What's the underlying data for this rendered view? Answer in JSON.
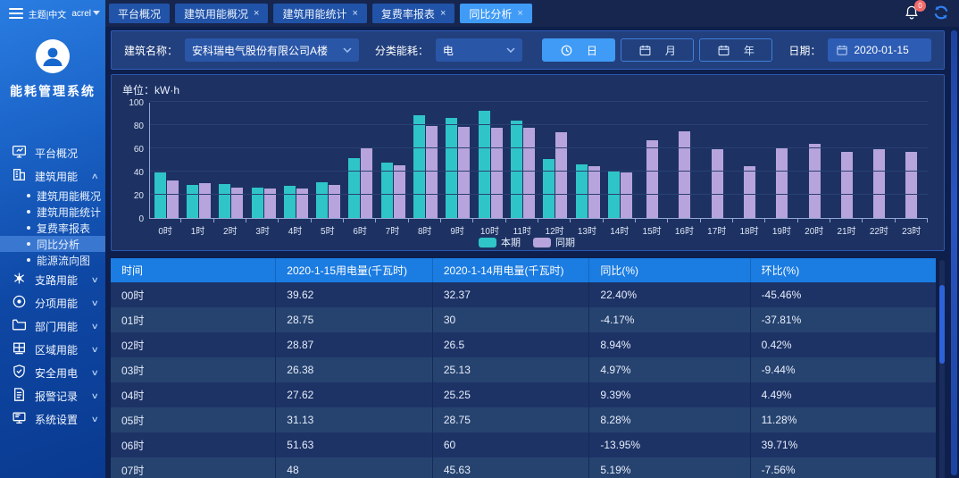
{
  "topbar": {
    "theme_label": "主题|中文",
    "user": "acrel",
    "notification_count": "0",
    "tabs": [
      {
        "label": "平台概况",
        "closable": false,
        "active": false
      },
      {
        "label": "建筑用能概况",
        "closable": true,
        "active": false
      },
      {
        "label": "建筑用能统计",
        "closable": true,
        "active": false
      },
      {
        "label": "复费率报表",
        "closable": true,
        "active": false
      },
      {
        "label": "同比分析",
        "closable": true,
        "active": true
      }
    ]
  },
  "sidebar": {
    "system_title": "能耗管理系统",
    "items": [
      {
        "label": "平台概况",
        "icon": "monitor-icon",
        "collapsible": false
      },
      {
        "label": "建筑用能",
        "icon": "building-icon",
        "collapsible": true,
        "expanded": true,
        "children": [
          {
            "label": "建筑用能概况",
            "active": false
          },
          {
            "label": "建筑用能统计",
            "active": false
          },
          {
            "label": "复费率报表",
            "active": false
          },
          {
            "label": "同比分析",
            "active": true
          },
          {
            "label": "能源流向图",
            "active": false
          }
        ]
      },
      {
        "label": "支路用能",
        "icon": "branch-icon",
        "collapsible": true,
        "expanded": false
      },
      {
        "label": "分项用能",
        "icon": "target-icon",
        "collapsible": true,
        "expanded": false
      },
      {
        "label": "部门用能",
        "icon": "folder-icon",
        "collapsible": true,
        "expanded": false
      },
      {
        "label": "区域用能",
        "icon": "area-icon",
        "collapsible": true,
        "expanded": false
      },
      {
        "label": "安全用电",
        "icon": "shield-icon",
        "collapsible": true,
        "expanded": false
      },
      {
        "label": "报警记录",
        "icon": "alarm-doc-icon",
        "collapsible": true,
        "expanded": false
      },
      {
        "label": "系统设置",
        "icon": "settings-icon",
        "collapsible": true,
        "expanded": false
      }
    ]
  },
  "filters": {
    "building_label": "建筑名称：",
    "building_value": "安科瑞电气股份有限公司A楼",
    "energy_label": "分类能耗：",
    "energy_value": "电",
    "period_buttons": [
      {
        "label": "日",
        "icon": "clock-icon",
        "active": true
      },
      {
        "label": "月",
        "icon": "calendar-icon",
        "active": false
      },
      {
        "label": "年",
        "icon": "calendar-icon",
        "active": false
      }
    ],
    "date_label": "日期：",
    "date_value": "2020-01-15"
  },
  "chart_data": {
    "type": "bar",
    "title": "",
    "unit_label": "单位：kW·h",
    "xlabel": "",
    "ylabel": "kW·h",
    "ylim": [
      0,
      100
    ],
    "yticks": [
      0,
      20,
      40,
      60,
      80,
      100
    ],
    "grid": true,
    "legend_position": "bottom",
    "categories": [
      "0时",
      "1时",
      "2时",
      "3时",
      "4时",
      "5时",
      "6时",
      "7时",
      "8时",
      "9时",
      "10时",
      "11时",
      "12时",
      "13时",
      "14时",
      "15时",
      "16时",
      "17时",
      "18时",
      "19时",
      "20时",
      "21时",
      "22时",
      "23时"
    ],
    "series": [
      {
        "name": "本期",
        "color": "#2fc5c8",
        "values": [
          39.62,
          28.75,
          28.87,
          26.38,
          27.62,
          31.13,
          51.63,
          48,
          88.5,
          86.5,
          92.5,
          84,
          51,
          46.5,
          41,
          null,
          null,
          null,
          null,
          null,
          null,
          null,
          null,
          null
        ]
      },
      {
        "name": "同期",
        "color": "#b7a4dc",
        "values": [
          32.37,
          30,
          26.5,
          25.13,
          25.25,
          28.75,
          60,
          45.63,
          79.5,
          78.5,
          78,
          78,
          73.5,
          44.5,
          39.5,
          67,
          75,
          59,
          45,
          60.5,
          64,
          57,
          59,
          57
        ]
      }
    ]
  },
  "table": {
    "columns": [
      "时间",
      "2020-1-15用电量(千瓦时)",
      "2020-1-14用电量(千瓦时)",
      "同比(%)",
      "环比(%)"
    ],
    "col_widths": [
      "20%",
      "19%",
      "19%",
      "19.5%",
      "22.5%"
    ],
    "rows": [
      [
        "00时",
        "39.62",
        "32.37",
        "22.40%",
        "-45.46%"
      ],
      [
        "01时",
        "28.75",
        "30",
        "-4.17%",
        "-37.81%"
      ],
      [
        "02时",
        "28.87",
        "26.5",
        "8.94%",
        "0.42%"
      ],
      [
        "03时",
        "26.38",
        "25.13",
        "4.97%",
        "-9.44%"
      ],
      [
        "04时",
        "27.62",
        "25.25",
        "9.39%",
        "4.49%"
      ],
      [
        "05时",
        "31.13",
        "28.75",
        "8.28%",
        "11.28%"
      ],
      [
        "06时",
        "51.63",
        "60",
        "-13.95%",
        "39.71%"
      ],
      [
        "07时",
        "48",
        "45.63",
        "5.19%",
        "-7.56%"
      ]
    ]
  },
  "colors": {
    "accent": "#3f9bf5",
    "table_header": "#1b7ce2",
    "series_current": "#2fc5c8",
    "series_previous": "#b7a4dc",
    "badge": "#f26a6a"
  }
}
